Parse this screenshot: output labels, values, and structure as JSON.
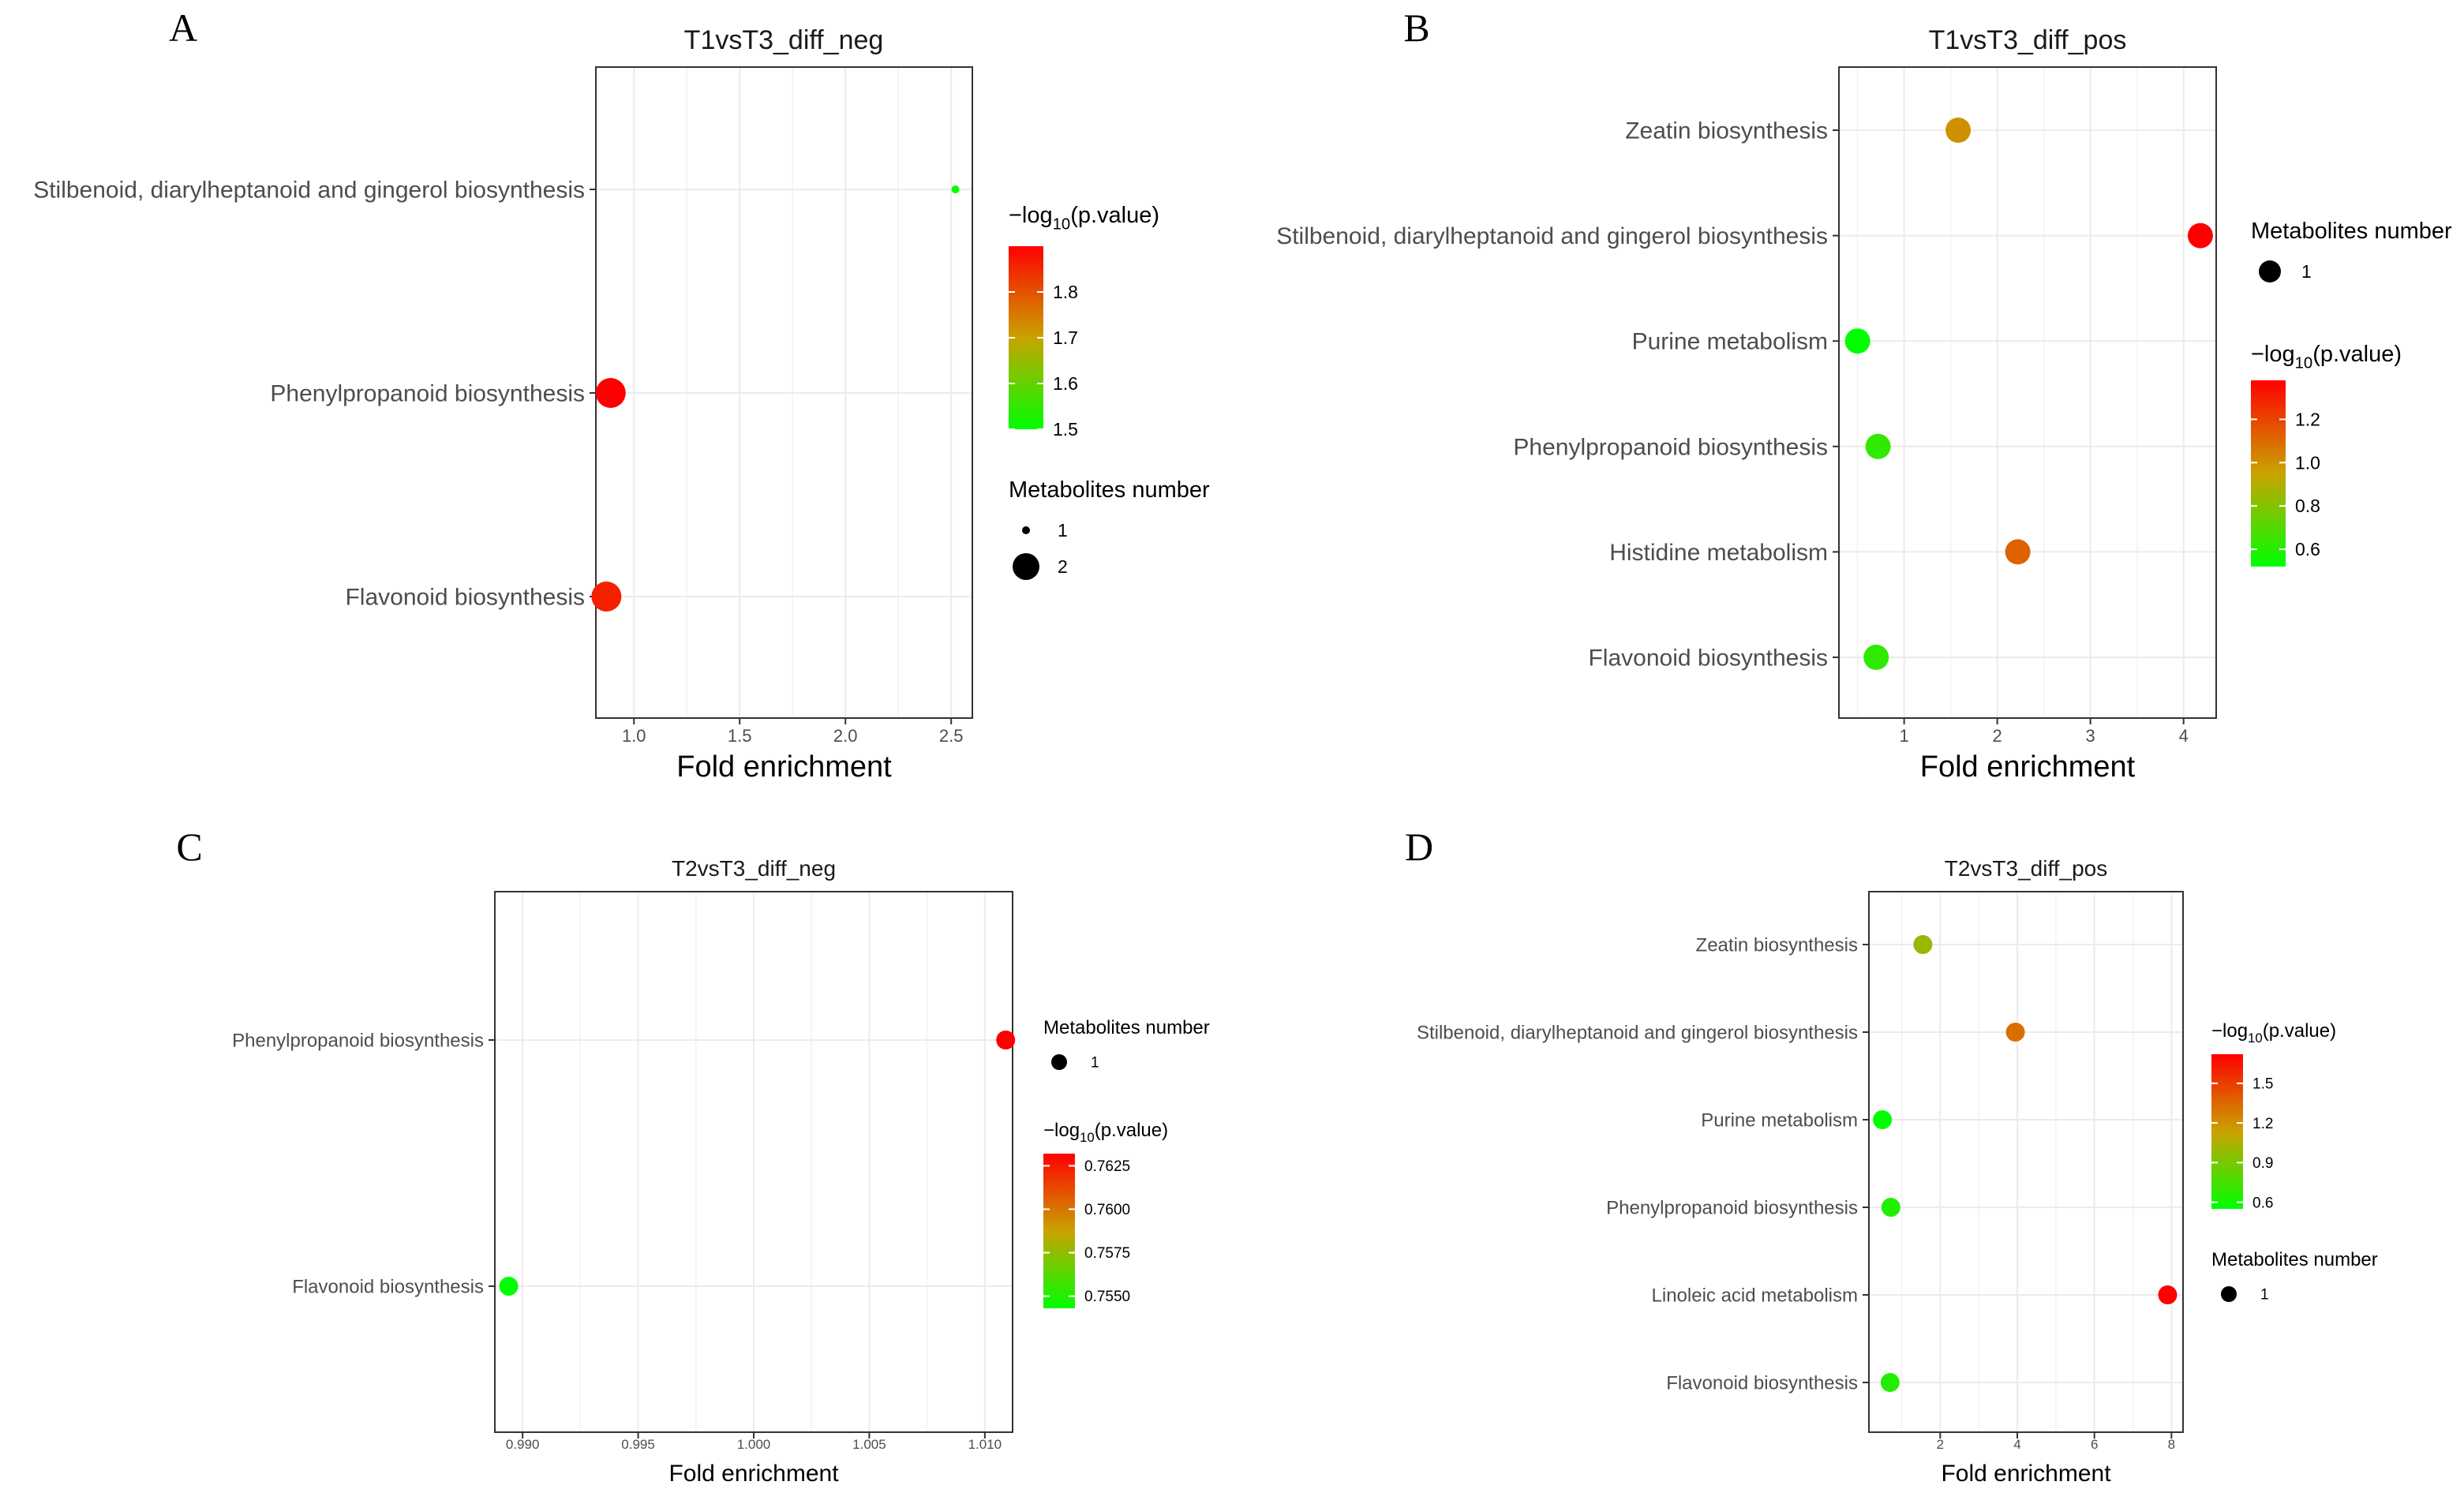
{
  "colors": {
    "low": "#00FF00",
    "mid": "#C9A300",
    "high": "#FF0000"
  },
  "chart_data": [
    {
      "type": "scatter",
      "panel": "A",
      "title": "T1vsT3_diff_neg",
      "xlabel": "Fold enrichment",
      "ylabel": "",
      "xlim": [
        0.82,
        2.6
      ],
      "xticks": [
        1.0,
        1.5,
        2.0,
        2.5
      ],
      "xtick_labels": [
        "1.0",
        "1.5",
        "2.0",
        "2.5"
      ],
      "categories": [
        "Stilbenoid, diarylheptanoid and gingerol biosynthesis",
        "Phenylpropanoid biosynthesis",
        "Flavonoid biosynthesis"
      ],
      "x": [
        2.52,
        0.89,
        0.87
      ],
      "log10p": [
        1.49,
        1.9,
        1.86
      ],
      "size": [
        1,
        2,
        2
      ],
      "color_legend": {
        "title_prefix": "−log",
        "title_sub": "10",
        "title_suffix": "(p.value)",
        "range": [
          1.5,
          1.9
        ],
        "ticks": [
          "1.8",
          "1.7",
          "1.6",
          "1.5"
        ]
      },
      "size_legend": {
        "title": "Metabolites number",
        "labels": [
          "1",
          "2"
        ]
      }
    },
    {
      "type": "scatter",
      "panel": "B",
      "title": "T1vsT3_diff_pos",
      "xlabel": "Fold enrichment",
      "ylabel": "",
      "xlim": [
        0.3,
        4.35
      ],
      "xticks": [
        1,
        2,
        3,
        4
      ],
      "xtick_labels": [
        "1",
        "2",
        "3",
        "4"
      ],
      "categories": [
        "Zeatin biosynthesis",
        "Stilbenoid, diarylheptanoid and gingerol biosynthesis",
        "Purine metabolism",
        "Phenylpropanoid biosynthesis",
        "Histidine metabolism",
        "Flavonoid biosynthesis"
      ],
      "x": [
        1.58,
        4.18,
        0.5,
        0.72,
        2.22,
        0.7
      ],
      "log10p": [
        1.0,
        1.38,
        0.52,
        0.62,
        1.12,
        0.62
      ],
      "size": [
        1,
        1,
        1,
        1,
        1,
        1
      ],
      "size_legend": {
        "title": "Metabolites number",
        "labels": [
          "1"
        ]
      },
      "color_legend": {
        "title_prefix": "−log",
        "title_sub": "10",
        "title_suffix": "(p.value)",
        "range": [
          0.52,
          1.38
        ],
        "ticks": [
          "1.2",
          "1.0",
          "0.8",
          "0.6"
        ]
      }
    },
    {
      "type": "scatter",
      "panel": "C",
      "title": "T2vsT3_diff_neg",
      "xlabel": "Fold enrichment",
      "ylabel": "",
      "xlim": [
        0.9888,
        1.0112
      ],
      "xticks": [
        0.99,
        0.995,
        1.0,
        1.005,
        1.01
      ],
      "xtick_labels": [
        "0.990",
        "0.995",
        "1.000",
        "1.005",
        "1.010"
      ],
      "categories": [
        "Phenylpropanoid biosynthesis",
        "Flavonoid biosynthesis"
      ],
      "x": [
        1.0109,
        0.9894
      ],
      "log10p": [
        0.7632,
        0.7543
      ],
      "size": [
        1,
        1
      ],
      "size_legend": {
        "title": "Metabolites number",
        "labels": [
          "1"
        ]
      },
      "color_legend": {
        "title_prefix": "−log",
        "title_sub": "10",
        "title_suffix": "(p.value)",
        "range": [
          0.7543,
          0.7632
        ],
        "ticks": [
          "0.7625",
          "0.7600",
          "0.7575",
          "0.7550"
        ]
      }
    },
    {
      "type": "scatter",
      "panel": "D",
      "title": "T2vsT3_diff_pos",
      "xlabel": "Fold enrichment",
      "ylabel": "",
      "xlim": [
        0.15,
        8.3
      ],
      "xticks": [
        2,
        4,
        6,
        8
      ],
      "xtick_labels": [
        "2",
        "4",
        "6",
        "8"
      ],
      "categories": [
        "Zeatin biosynthesis",
        "Stilbenoid, diarylheptanoid and gingerol biosynthesis",
        "Purine metabolism",
        "Phenylpropanoid biosynthesis",
        "Linoleic acid metabolism",
        "Flavonoid biosynthesis"
      ],
      "x": [
        1.55,
        3.95,
        0.5,
        0.72,
        7.9,
        0.7
      ],
      "log10p": [
        1.0,
        1.32,
        0.55,
        0.65,
        1.72,
        0.65
      ],
      "size": [
        1,
        1,
        1,
        1,
        1,
        1
      ],
      "color_legend": {
        "title_prefix": "−log",
        "title_sub": "10",
        "title_suffix": "(p.value)",
        "range": [
          0.55,
          1.72
        ],
        "ticks": [
          "1.5",
          "1.2",
          "0.9",
          "0.6"
        ]
      },
      "size_legend": {
        "title": "Metabolites number",
        "labels": [
          "1"
        ]
      }
    }
  ]
}
